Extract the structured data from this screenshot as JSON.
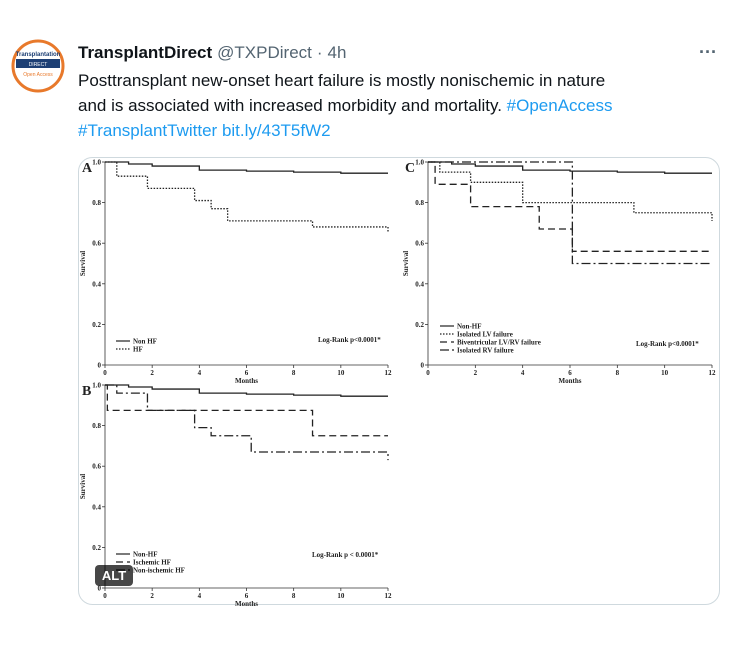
{
  "tweet": {
    "author": "TransplantDirect",
    "handle": "@TXPDirect",
    "separator": "·",
    "time": "4h",
    "menu": "···",
    "avatar": {
      "line1": "Transplantation",
      "line2": "DIRECT",
      "line3": "Open Access"
    },
    "text_lines": [
      [
        {
          "text": "Posttransplant new-onset heart failure is mostly nonischemic in nature",
          "link": false
        }
      ],
      [
        {
          "text": "and is associated with increased morbidity and mortality. ",
          "link": false
        },
        {
          "text": "#OpenAccess",
          "link": true
        }
      ],
      [
        {
          "text": "#TransplantTwitter",
          "link": true
        },
        {
          "text": " ",
          "link": false
        },
        {
          "text": "bit.ly/43T5fW2",
          "link": true
        }
      ]
    ],
    "alt_badge": "ALT"
  },
  "image": {
    "charts": [
      {
        "type": "step",
        "panel": "A",
        "xlabel": "Months",
        "ylabel": "Survival",
        "annotation": "Log-Rank p<0.0001*",
        "xlim": [
          0,
          12
        ],
        "ylim": [
          0,
          1
        ],
        "xticks": [
          0,
          2,
          4,
          6,
          8,
          10,
          12
        ],
        "yticks": [
          0,
          0.2,
          0.4,
          0.6,
          0.8,
          {
            "value": 1,
            "label": "1.0"
          }
        ],
        "series": [
          {
            "name": "Non HF",
            "color": "#222222",
            "dash": "solid",
            "x": [
              0,
              1,
              2,
              4,
              6,
              8,
              10,
              12
            ],
            "values": [
              1,
              0.99,
              0.98,
              0.96,
              0.955,
              0.95,
              0.945,
              0.945
            ]
          },
          {
            "name": "HF",
            "color": "#222222",
            "dash": "dotted",
            "x": [
              0,
              0.5,
              1.8,
              3.8,
              4.5,
              5.2,
              8.8,
              12
            ],
            "values": [
              1,
              0.93,
              0.87,
              0.81,
              0.77,
              0.71,
              0.68,
              0.65
            ]
          }
        ]
      },
      {
        "type": "step",
        "panel": "B",
        "xlabel": "Months",
        "ylabel": "Survival",
        "annotation": "Log-Rank p < 0.0001*",
        "xlim": [
          0,
          12
        ],
        "ylim": [
          0,
          1
        ],
        "xticks": [
          0,
          2,
          4,
          6,
          8,
          10,
          12
        ],
        "yticks": [
          0,
          0.2,
          0.4,
          0.6,
          0.8,
          {
            "value": 1,
            "label": "1.0"
          }
        ],
        "series": [
          {
            "name": "Non-HF",
            "color": "#222222",
            "dash": "solid",
            "x": [
              0,
              1,
              2,
              4,
              6,
              8,
              10,
              12
            ],
            "values": [
              1,
              0.99,
              0.98,
              0.96,
              0.955,
              0.95,
              0.945,
              0.945
            ]
          },
          {
            "name": "Ischemic HF",
            "color": "#222222",
            "dash": "dashed",
            "x": [
              0,
              0.1,
              8.8,
              12
            ],
            "values": [
              1,
              0.875,
              0.75,
              0.75
            ]
          },
          {
            "name": "Non-ischemic HF",
            "color": "#222222",
            "dash": "dashdot",
            "x": [
              0,
              0.5,
              1.8,
              3.8,
              4.5,
              6.2,
              12
            ],
            "values": [
              1,
              0.96,
              0.875,
              0.79,
              0.75,
              0.67,
              0.63
            ]
          }
        ]
      },
      {
        "type": "step",
        "panel": "C",
        "xlabel": "Months",
        "ylabel": "Survival",
        "annotation": "Log-Rank p<0.0001*",
        "xlim": [
          0,
          12
        ],
        "ylim": [
          0,
          1
        ],
        "xticks": [
          0,
          2,
          4,
          6,
          8,
          10,
          12
        ],
        "yticks": [
          0,
          0.2,
          0.4,
          0.6,
          0.8,
          {
            "value": 1,
            "label": "1.0"
          }
        ],
        "series": [
          {
            "name": "Non-HF",
            "color": "#222222",
            "dash": "solid",
            "x": [
              0,
              1,
              2,
              4,
              6,
              8,
              10,
              12
            ],
            "values": [
              1,
              0.99,
              0.98,
              0.96,
              0.955,
              0.95,
              0.945,
              0.945
            ]
          },
          {
            "name": "Isolated LV failure",
            "color": "#222222",
            "dash": "dotted",
            "x": [
              0,
              0.5,
              1.8,
              4,
              8.7,
              12
            ],
            "values": [
              1,
              0.95,
              0.9,
              0.8,
              0.75,
              0.71
            ]
          },
          {
            "name": "Biventricular LV/RV failure",
            "color": "#222222",
            "dash": "dashed",
            "x": [
              0,
              0.3,
              1.8,
              4.7,
              6.1,
              12
            ],
            "values": [
              1,
              0.89,
              0.78,
              0.67,
              0.56,
              0.56
            ]
          },
          {
            "name": "Isolated RV failure",
            "color": "#222222",
            "dash": "dashdot",
            "x": [
              0,
              6.1,
              12
            ],
            "values": [
              1,
              0.5,
              0.5
            ]
          }
        ]
      }
    ]
  }
}
